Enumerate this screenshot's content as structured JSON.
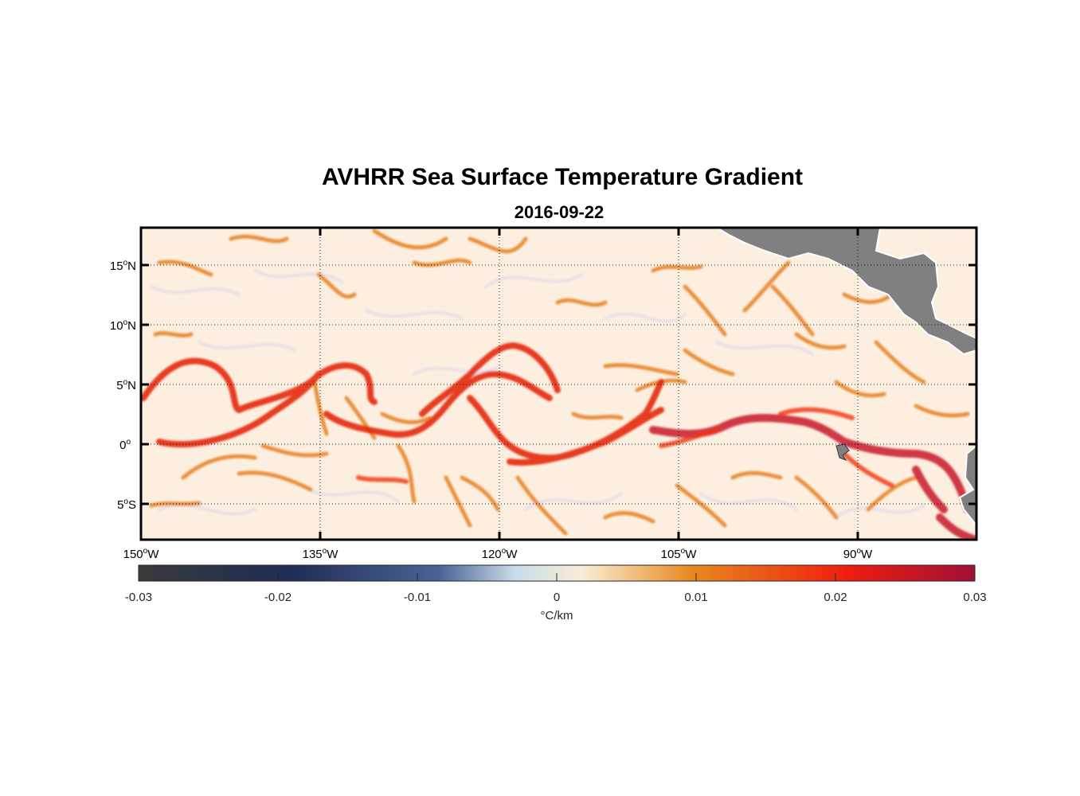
{
  "title": "AVHRR Sea Surface Temperature Gradient",
  "subtitle": "2016-09-22",
  "map": {
    "lon_range": [
      -150,
      -83
    ],
    "lat_range": [
      -8,
      18
    ],
    "grid": "dotted",
    "land_color": "#808080",
    "ocean_background": "#fcefe0",
    "lon_ticks": [
      {
        "deg": "150",
        "hem": "W"
      },
      {
        "deg": "135",
        "hem": "W"
      },
      {
        "deg": "120",
        "hem": "W"
      },
      {
        "deg": "105",
        "hem": "W"
      },
      {
        "deg": "90",
        "hem": "W"
      }
    ],
    "lat_ticks": [
      {
        "deg": "15",
        "hem": "N"
      },
      {
        "deg": "10",
        "hem": "N"
      },
      {
        "deg": "5",
        "hem": "N"
      },
      {
        "deg": "0",
        "hem": ""
      },
      {
        "deg": "5",
        "hem": "S"
      }
    ],
    "degree_symbol": "o"
  },
  "colorbar": {
    "label": "°C/km",
    "min": -0.03,
    "max": 0.03,
    "tick_labels": [
      "-0.03",
      "-0.02",
      "-0.01",
      "0",
      "0.01",
      "0.02",
      "0.03"
    ],
    "colors": [
      "#3a3a3a",
      "#1f2d55",
      "#4a6396",
      "#c9dcea",
      "#f9eed8",
      "#e88a1f",
      "#ee1c0e",
      "#9e1236"
    ]
  }
}
